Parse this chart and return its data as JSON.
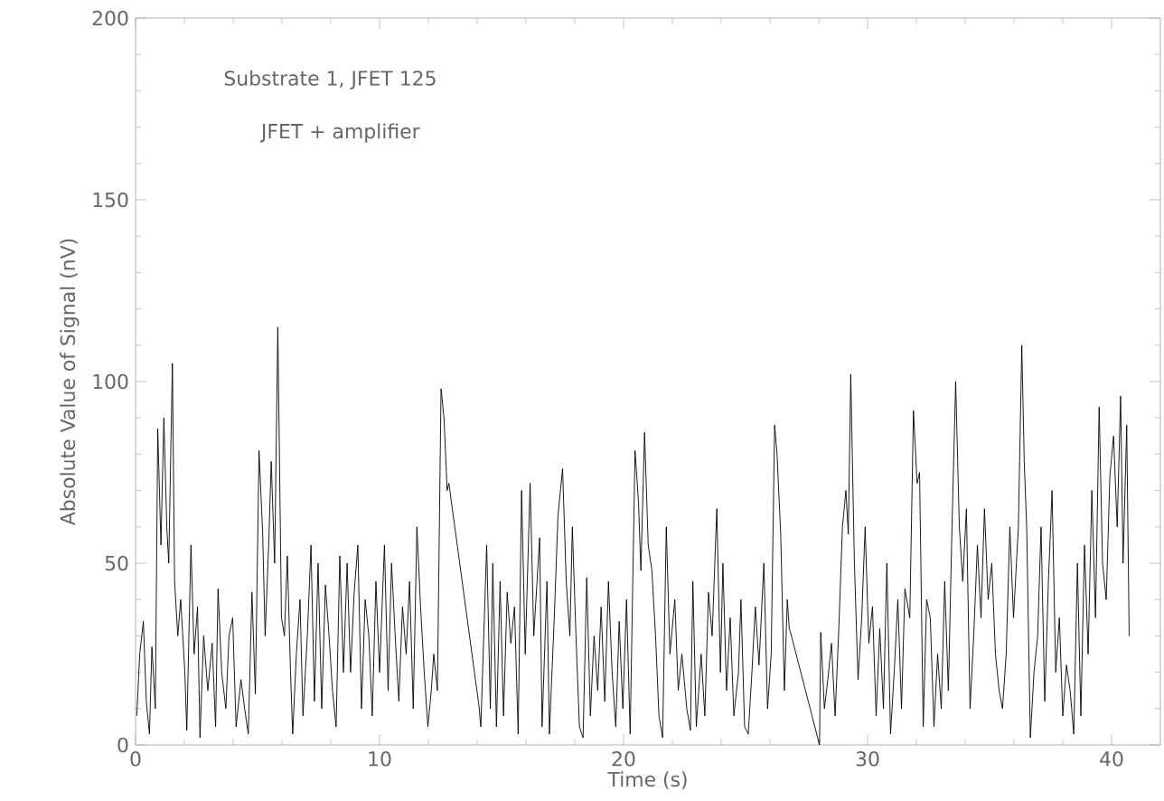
{
  "chart_data": {
    "type": "line",
    "xlabel": "Time (s)",
    "ylabel": "Absolute Value of Signal (nV)",
    "annotations": [
      "Substrate 1, JFET 125",
      "JFET + amplifier"
    ],
    "xlim": [
      0,
      42
    ],
    "ylim": [
      0,
      200
    ],
    "xticks": [
      0,
      10,
      20,
      30,
      40
    ],
    "yticks": [
      0,
      50,
      100,
      150,
      200
    ],
    "grid": false,
    "marker": "none",
    "line_style": "solid",
    "series": [
      {
        "color": "#000000",
        "x": [
          0.05,
          0.17,
          0.32,
          0.44,
          0.57,
          0.67,
          0.81,
          0.91,
          1.04,
          1.16,
          1.28,
          1.36,
          1.51,
          1.6,
          1.73,
          1.85,
          2.02,
          2.1,
          2.27,
          2.4,
          2.54,
          2.64,
          2.79,
          2.96,
          3.14,
          3.28,
          3.38,
          3.53,
          3.7,
          3.83,
          3.98,
          4.12,
          4.32,
          4.47,
          4.62,
          4.77,
          4.91,
          5.06,
          5.21,
          5.31,
          5.46,
          5.56,
          5.7,
          5.83,
          5.98,
          6.1,
          6.22,
          6.35,
          6.44,
          6.59,
          6.74,
          6.86,
          7.04,
          7.19,
          7.33,
          7.48,
          7.63,
          7.78,
          7.93,
          8.07,
          8.22,
          8.37,
          8.52,
          8.67,
          8.81,
          8.96,
          9.11,
          9.26,
          9.41,
          9.56,
          9.7,
          9.85,
          10.0,
          10.2,
          10.35,
          10.49,
          10.64,
          10.79,
          10.94,
          11.09,
          11.23,
          11.38,
          11.53,
          11.68,
          11.83,
          11.98,
          12.12,
          12.22,
          12.37,
          12.52,
          12.64,
          12.77,
          12.84,
          14.07,
          14.15,
          14.39,
          14.54,
          14.64,
          14.79,
          14.94,
          15.08,
          15.23,
          15.38,
          15.53,
          15.68,
          15.82,
          15.97,
          16.17,
          16.32,
          16.56,
          16.66,
          16.86,
          16.96,
          17.16,
          17.31,
          17.5,
          17.65,
          17.8,
          17.9,
          18.05,
          18.19,
          18.34,
          18.49,
          18.64,
          18.79,
          18.94,
          19.08,
          19.23,
          19.38,
          19.53,
          19.68,
          19.82,
          19.97,
          20.12,
          20.27,
          20.47,
          20.61,
          20.71,
          20.86,
          21.01,
          21.16,
          21.31,
          21.45,
          21.6,
          21.75,
          21.9,
          22.1,
          22.24,
          22.39,
          22.59,
          22.74,
          22.84,
          22.98,
          23.18,
          23.33,
          23.48,
          23.63,
          23.82,
          23.97,
          24.07,
          24.22,
          24.37,
          24.52,
          24.71,
          24.81,
          24.96,
          25.11,
          25.26,
          25.4,
          25.55,
          25.75,
          25.9,
          26.05,
          26.19,
          26.29,
          26.44,
          26.59,
          26.71,
          26.79,
          26.84,
          28.03,
          28.08,
          28.23,
          28.37,
          28.52,
          28.67,
          28.82,
          28.97,
          29.11,
          29.21,
          29.31,
          29.46,
          29.61,
          29.76,
          29.9,
          30.05,
          30.2,
          30.35,
          30.5,
          30.65,
          30.79,
          30.94,
          31.09,
          31.24,
          31.39,
          31.53,
          31.73,
          31.88,
          32.03,
          32.13,
          32.28,
          32.42,
          32.57,
          32.72,
          32.87,
          33.02,
          33.16,
          33.31,
          33.46,
          33.61,
          33.76,
          33.9,
          34.05,
          34.2,
          34.35,
          34.5,
          34.65,
          34.79,
          34.94,
          35.09,
          35.24,
          35.39,
          35.53,
          35.68,
          35.83,
          35.98,
          36.18,
          36.32,
          36.42,
          36.52,
          36.67,
          36.82,
          36.97,
          37.11,
          37.26,
          37.41,
          37.56,
          37.71,
          37.86,
          38.0,
          38.15,
          38.3,
          38.45,
          38.6,
          38.74,
          38.89,
          39.04,
          39.19,
          39.34,
          39.49,
          39.63,
          39.78,
          39.93,
          40.08,
          40.23,
          40.37,
          40.47,
          40.62,
          40.72
        ],
        "values": [
          8,
          25,
          34,
          12,
          3,
          27,
          10,
          87,
          55,
          90,
          60,
          50,
          105,
          45,
          30,
          40,
          20,
          4,
          55,
          25,
          38,
          2,
          30,
          15,
          28,
          5,
          43,
          20,
          10,
          30,
          35,
          5,
          18,
          10,
          3,
          42,
          14,
          81,
          58,
          30,
          56,
          78,
          50,
          115,
          35,
          30,
          52,
          20,
          3,
          25,
          40,
          8,
          30,
          55,
          12,
          50,
          10,
          44,
          30,
          15,
          5,
          52,
          20,
          50,
          20,
          42,
          55,
          10,
          40,
          30,
          8,
          45,
          20,
          55,
          15,
          50,
          30,
          12,
          38,
          25,
          45,
          10,
          60,
          38,
          20,
          5,
          15,
          25,
          15,
          98,
          90,
          70,
          72,
          11,
          5,
          55,
          10,
          50,
          5,
          45,
          8,
          42,
          28,
          38,
          3,
          70,
          25,
          72,
          30,
          57,
          5,
          45,
          3,
          35,
          63,
          76,
          45,
          30,
          60,
          30,
          5,
          2,
          46,
          8,
          30,
          15,
          38,
          12,
          45,
          20,
          5,
          34,
          10,
          40,
          3,
          81,
          67,
          48,
          86,
          55,
          48,
          30,
          8,
          2,
          60,
          25,
          40,
          15,
          25,
          10,
          4,
          45,
          5,
          25,
          8,
          42,
          30,
          65,
          20,
          50,
          15,
          35,
          8,
          20,
          40,
          5,
          3,
          20,
          38,
          22,
          50,
          10,
          25,
          88,
          80,
          58,
          15,
          40,
          32,
          31,
          0,
          31,
          10,
          18,
          28,
          8,
          32,
          60,
          70,
          58,
          102,
          50,
          18,
          35,
          60,
          28,
          38,
          8,
          32,
          10,
          50,
          3,
          20,
          40,
          10,
          43,
          35,
          92,
          72,
          75,
          5,
          40,
          35,
          5,
          25,
          10,
          45,
          15,
          60,
          100,
          60,
          45,
          65,
          10,
          30,
          55,
          35,
          65,
          40,
          50,
          25,
          15,
          10,
          25,
          60,
          35,
          60,
          110,
          78,
          60,
          2,
          20,
          30,
          60,
          12,
          45,
          70,
          20,
          35,
          8,
          22,
          15,
          3,
          50,
          8,
          55,
          25,
          70,
          35,
          93,
          50,
          40,
          74,
          85,
          60,
          96,
          50,
          88,
          30
        ]
      }
    ]
  }
}
